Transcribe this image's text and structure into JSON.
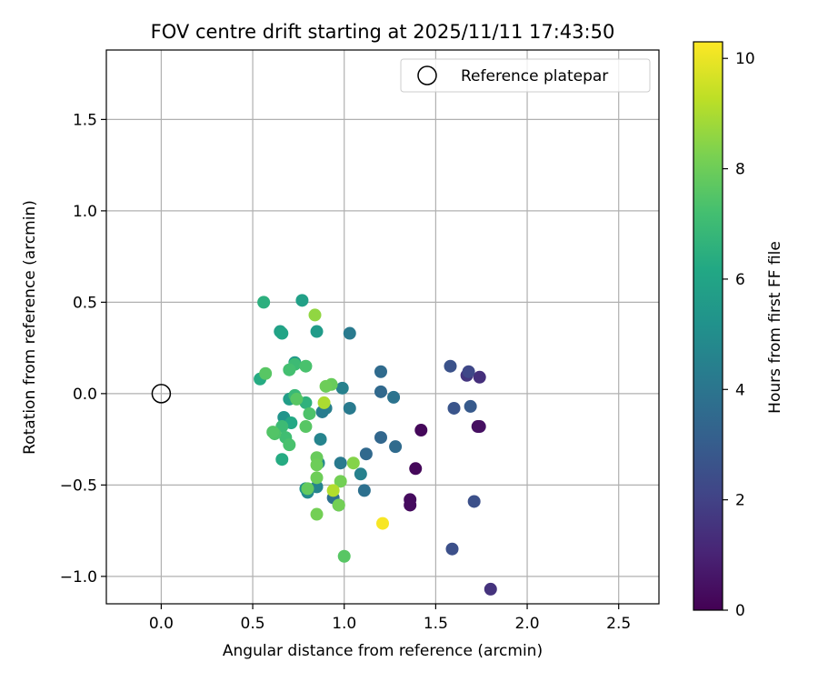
{
  "chart_data": {
    "type": "scatter",
    "title": "FOV centre drift starting at 2025/11/11 17:43:50",
    "xlabel": "Angular distance from reference (arcmin)",
    "ylabel": "Rotation from reference (arcmin)",
    "xlim": [
      -0.3,
      2.72
    ],
    "ylim": [
      -1.15,
      1.88
    ],
    "xticks": [
      0.0,
      0.5,
      1.0,
      1.5,
      2.0,
      2.5
    ],
    "xtick_labels": [
      "0.0",
      "0.5",
      "1.0",
      "1.5",
      "2.0",
      "2.5"
    ],
    "yticks": [
      -1.0,
      -0.5,
      0.0,
      0.5,
      1.0,
      1.5
    ],
    "ytick_labels": [
      "−1.0",
      "−0.5",
      "0.0",
      "0.5",
      "1.0",
      "1.5"
    ],
    "grid": true,
    "legend": {
      "location": "top-right",
      "label": "Reference platepar"
    },
    "reference_point": {
      "x": 0.0,
      "y": 0.0
    },
    "colorbar": {
      "label": "Hours from first FF file",
      "colormap": "viridis",
      "range": [
        0,
        10.3
      ],
      "ticks": [
        0,
        2,
        4,
        6,
        8,
        10
      ],
      "tick_labels": [
        "0",
        "2",
        "4",
        "6",
        "8",
        "10"
      ]
    },
    "points": [
      {
        "x": 1.42,
        "y": -0.2,
        "hours": 0.2
      },
      {
        "x": 1.39,
        "y": -0.41,
        "hours": 0.2
      },
      {
        "x": 1.36,
        "y": -0.58,
        "hours": 0.3
      },
      {
        "x": 1.36,
        "y": -0.61,
        "hours": 0.3
      },
      {
        "x": 1.74,
        "y": -0.18,
        "hours": 0.5
      },
      {
        "x": 1.73,
        "y": -0.18,
        "hours": 0.4
      },
      {
        "x": 1.74,
        "y": 0.09,
        "hours": 1.4
      },
      {
        "x": 1.67,
        "y": 0.1,
        "hours": 1.6
      },
      {
        "x": 1.68,
        "y": 0.12,
        "hours": 2.2
      },
      {
        "x": 1.58,
        "y": 0.15,
        "hours": 2.6
      },
      {
        "x": 1.6,
        "y": -0.08,
        "hours": 2.7
      },
      {
        "x": 1.69,
        "y": -0.07,
        "hours": 2.9
      },
      {
        "x": 1.8,
        "y": -1.07,
        "hours": 1.5
      },
      {
        "x": 1.71,
        "y": -0.59,
        "hours": 2.5
      },
      {
        "x": 1.59,
        "y": -0.85,
        "hours": 2.5
      },
      {
        "x": 1.28,
        "y": -0.29,
        "hours": 3.6
      },
      {
        "x": 1.27,
        "y": -0.02,
        "hours": 3.9
      },
      {
        "x": 1.2,
        "y": 0.01,
        "hours": 3.5
      },
      {
        "x": 1.2,
        "y": 0.12,
        "hours": 3.6
      },
      {
        "x": 1.2,
        "y": -0.24,
        "hours": 3.4
      },
      {
        "x": 1.12,
        "y": -0.33,
        "hours": 3.5
      },
      {
        "x": 1.11,
        "y": -0.53,
        "hours": 3.8
      },
      {
        "x": 1.09,
        "y": -0.44,
        "hours": 4.5
      },
      {
        "x": 1.03,
        "y": 0.33,
        "hours": 4.2
      },
      {
        "x": 1.03,
        "y": -0.08,
        "hours": 4.2
      },
      {
        "x": 0.99,
        "y": 0.03,
        "hours": 4.5
      },
      {
        "x": 0.98,
        "y": -0.38,
        "hours": 4.2
      },
      {
        "x": 0.97,
        "y": -0.61,
        "hours": 3.9
      },
      {
        "x": 0.94,
        "y": -0.57,
        "hours": 3.8
      },
      {
        "x": 0.9,
        "y": -0.08,
        "hours": 4.4
      },
      {
        "x": 0.88,
        "y": -0.1,
        "hours": 4.3
      },
      {
        "x": 0.87,
        "y": -0.25,
        "hours": 4.6
      },
      {
        "x": 0.86,
        "y": -0.38,
        "hours": 4.8
      },
      {
        "x": 0.85,
        "y": -0.51,
        "hours": 4.6
      },
      {
        "x": 0.8,
        "y": -0.54,
        "hours": 4.8
      },
      {
        "x": 0.79,
        "y": -0.52,
        "hours": 5.1
      },
      {
        "x": 0.85,
        "y": 0.34,
        "hours": 5.6
      },
      {
        "x": 0.77,
        "y": 0.51,
        "hours": 5.8
      },
      {
        "x": 0.73,
        "y": 0.17,
        "hours": 5.5
      },
      {
        "x": 0.67,
        "y": -0.13,
        "hours": 5.3
      },
      {
        "x": 0.7,
        "y": -0.03,
        "hours": 5.7
      },
      {
        "x": 0.65,
        "y": 0.34,
        "hours": 5.8
      },
      {
        "x": 0.66,
        "y": 0.33,
        "hours": 6.0
      },
      {
        "x": 0.54,
        "y": 0.08,
        "hours": 6.3
      },
      {
        "x": 0.56,
        "y": 0.5,
        "hours": 6.5
      },
      {
        "x": 0.71,
        "y": -0.16,
        "hours": 6.2
      },
      {
        "x": 0.66,
        "y": -0.36,
        "hours": 6.3
      },
      {
        "x": 0.79,
        "y": -0.05,
        "hours": 6.6
      },
      {
        "x": 0.73,
        "y": -0.01,
        "hours": 6.9
      },
      {
        "x": 0.73,
        "y": 0.16,
        "hours": 7.0
      },
      {
        "x": 0.7,
        "y": 0.13,
        "hours": 7.2
      },
      {
        "x": 0.66,
        "y": -0.18,
        "hours": 7.0
      },
      {
        "x": 0.68,
        "y": -0.24,
        "hours": 7.1
      },
      {
        "x": 0.7,
        "y": -0.28,
        "hours": 7.3
      },
      {
        "x": 0.62,
        "y": -0.22,
        "hours": 7.4
      },
      {
        "x": 0.61,
        "y": -0.21,
        "hours": 7.5
      },
      {
        "x": 0.57,
        "y": 0.11,
        "hours": 7.6
      },
      {
        "x": 0.79,
        "y": 0.15,
        "hours": 7.3
      },
      {
        "x": 0.74,
        "y": -0.03,
        "hours": 7.6
      },
      {
        "x": 0.81,
        "y": -0.11,
        "hours": 7.4
      },
      {
        "x": 0.79,
        "y": -0.18,
        "hours": 7.6
      },
      {
        "x": 0.85,
        "y": -0.35,
        "hours": 7.9
      },
      {
        "x": 0.85,
        "y": -0.39,
        "hours": 8.0
      },
      {
        "x": 0.85,
        "y": -0.46,
        "hours": 8.0
      },
      {
        "x": 0.8,
        "y": -0.52,
        "hours": 7.8
      },
      {
        "x": 0.85,
        "y": -0.66,
        "hours": 8.1
      },
      {
        "x": 0.93,
        "y": 0.05,
        "hours": 7.9
      },
      {
        "x": 0.9,
        "y": 0.04,
        "hours": 8.0
      },
      {
        "x": 0.98,
        "y": -0.48,
        "hours": 8.1
      },
      {
        "x": 0.97,
        "y": -0.61,
        "hours": 8.1
      },
      {
        "x": 1.0,
        "y": -0.89,
        "hours": 7.6
      },
      {
        "x": 1.05,
        "y": -0.38,
        "hours": 8.4
      },
      {
        "x": 0.84,
        "y": 0.43,
        "hours": 8.6
      },
      {
        "x": 0.89,
        "y": -0.05,
        "hours": 9.0
      },
      {
        "x": 0.94,
        "y": -0.53,
        "hours": 9.1
      },
      {
        "x": 1.21,
        "y": -0.71,
        "hours": 10.2
      }
    ]
  }
}
